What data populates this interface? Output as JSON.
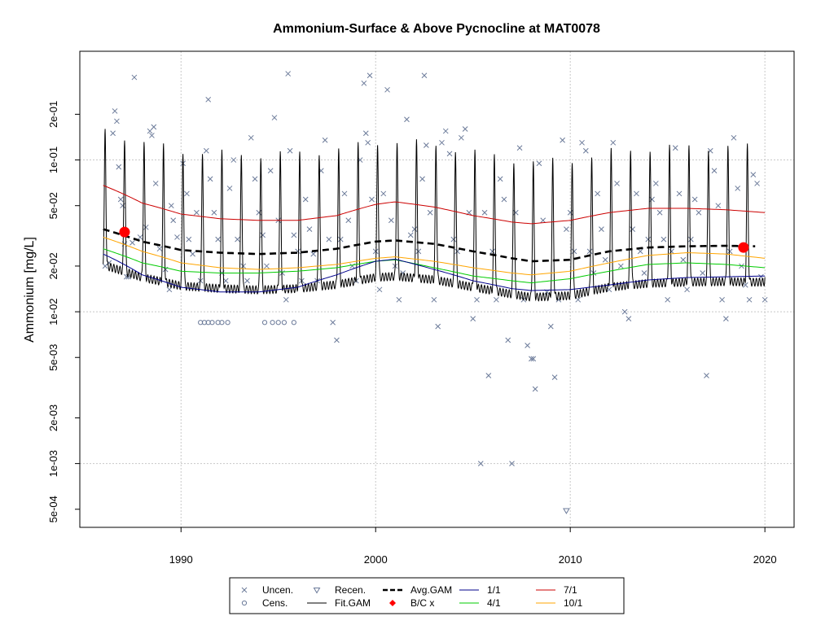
{
  "chart_data": {
    "type": "scatter",
    "title": "Ammonium-Surface & Above Pycnocline at MAT0078",
    "ylabel": "Ammonium [mg/L]",
    "xlabel": "",
    "y_scale": "log",
    "xlim": [
      1984.8,
      2021.5
    ],
    "ylim": [
      0.00038,
      0.52
    ],
    "x_ticks": [
      1990,
      2000,
      2010,
      2020
    ],
    "x_tick_labels": [
      "1990",
      "2000",
      "2010",
      "2020"
    ],
    "y_ticks": [
      0.0005,
      0.001,
      0.002,
      0.005,
      0.01,
      0.02,
      0.05,
      0.1,
      0.2
    ],
    "y_tick_labels": [
      "5e-04",
      "1e-03",
      "2e-03",
      "5e-03",
      "1e-02",
      "2e-02",
      "5e-02",
      "1e-01",
      "2e-01"
    ],
    "grid_x": [
      1990,
      2000,
      2010,
      2020
    ],
    "grid_y": [
      0.001,
      0.01,
      0.1
    ],
    "legend": {
      "position": "bottom",
      "entries": [
        {
          "key": "uncen",
          "label": "Uncen."
        },
        {
          "key": "recen",
          "label": "Recen."
        },
        {
          "key": "avg",
          "label": "Avg.GAM"
        },
        {
          "key": "q11",
          "label": "1/1"
        },
        {
          "key": "q71",
          "label": "7/1"
        },
        {
          "key": "cens",
          "label": "Cens."
        },
        {
          "key": "fit",
          "label": "Fit.GAM"
        },
        {
          "key": "bc",
          "label": "B/C x"
        },
        {
          "key": "q41",
          "label": "4/1"
        },
        {
          "key": "q101",
          "label": "10/1"
        }
      ]
    },
    "colors": {
      "uncen": "#6b7a99",
      "cens": "#6b7a99",
      "recen": "#6b7a99",
      "fit": "#000000",
      "avg": "#000000",
      "bc": "#ff0000",
      "q11": "#00008b",
      "q41": "#00cc00",
      "q71": "#cc0000",
      "q101": "#ffa500"
    },
    "series": [
      {
        "key": "q71",
        "name": "7/1",
        "x": [
          1986,
          1988,
          1990,
          1992,
          1994,
          1996,
          1998,
          2000,
          2001,
          2003,
          2005,
          2007,
          2008,
          2010,
          2012,
          2014,
          2016,
          2018,
          2020
        ],
        "y": [
          0.068,
          0.052,
          0.044,
          0.041,
          0.04,
          0.04,
          0.043,
          0.051,
          0.053,
          0.049,
          0.043,
          0.039,
          0.038,
          0.04,
          0.045,
          0.048,
          0.048,
          0.047,
          0.045
        ]
      },
      {
        "key": "avg",
        "name": "Avg.GAM",
        "x": [
          1986,
          1988,
          1990,
          1992,
          1994,
          1996,
          1998,
          2000,
          2001,
          2003,
          2005,
          2007,
          2008,
          2010,
          2012,
          2014,
          2016,
          2018,
          2019.5
        ],
        "y": [
          0.035,
          0.029,
          0.0255,
          0.0245,
          0.024,
          0.0245,
          0.026,
          0.029,
          0.0295,
          0.028,
          0.025,
          0.0225,
          0.0215,
          0.022,
          0.025,
          0.0265,
          0.027,
          0.0272,
          0.027
        ]
      },
      {
        "key": "q101",
        "name": "10/1",
        "x": [
          1986,
          1988,
          1990,
          1992,
          1994,
          1996,
          1998,
          2000,
          2001,
          2003,
          2005,
          2007,
          2008,
          2010,
          2012,
          2014,
          2016,
          2018,
          2020
        ],
        "y": [
          0.031,
          0.025,
          0.021,
          0.0195,
          0.019,
          0.0195,
          0.0205,
          0.0225,
          0.023,
          0.0215,
          0.0195,
          0.018,
          0.0175,
          0.0185,
          0.021,
          0.0235,
          0.0245,
          0.024,
          0.0225
        ]
      },
      {
        "key": "q41",
        "name": "4/1",
        "x": [
          1986,
          1988,
          1990,
          1992,
          1994,
          1996,
          1998,
          2000,
          2001,
          2003,
          2005,
          2007,
          2008,
          2010,
          2012,
          2014,
          2016,
          2018,
          2020
        ],
        "y": [
          0.026,
          0.021,
          0.0185,
          0.018,
          0.018,
          0.0185,
          0.0195,
          0.0215,
          0.022,
          0.0195,
          0.0172,
          0.016,
          0.0155,
          0.0165,
          0.0185,
          0.0205,
          0.021,
          0.0205,
          0.0195
        ]
      },
      {
        "key": "q11",
        "name": "1/1",
        "x": [
          1986,
          1988,
          1990,
          1992,
          1994,
          1996,
          1998,
          2000,
          2001,
          2003,
          2005,
          2007,
          2008,
          2010,
          2012,
          2014,
          2016,
          2018,
          2020
        ],
        "y": [
          0.024,
          0.0175,
          0.0145,
          0.0135,
          0.0135,
          0.0145,
          0.0175,
          0.0215,
          0.0222,
          0.019,
          0.016,
          0.0142,
          0.0138,
          0.014,
          0.015,
          0.0162,
          0.0168,
          0.017,
          0.0172
        ]
      }
    ],
    "fit_gam": {
      "key": "fit",
      "name": "Fit.GAM",
      "start_year": 1986,
      "end_year": 2020,
      "peak_fraction": 0.1,
      "peak_ratio": 4.5,
      "trough_ratio": 0.58
    },
    "bc_points": [
      {
        "x": 1987.1,
        "y": 0.0335
      },
      {
        "x": 2018.9,
        "y": 0.0265
      }
    ],
    "uncensored": [
      [
        1986.1,
        0.02
      ],
      [
        1986.3,
        0.021
      ],
      [
        1986.5,
        0.15
      ],
      [
        1986.6,
        0.21
      ],
      [
        1986.7,
        0.18
      ],
      [
        1986.8,
        0.09
      ],
      [
        1986.9,
        0.055
      ],
      [
        1987.0,
        0.05
      ],
      [
        1987.1,
        0.028
      ],
      [
        1987.2,
        0.017
      ],
      [
        1987.3,
        0.017
      ],
      [
        1987.5,
        0.0285
      ],
      [
        1987.6,
        0.35
      ],
      [
        1987.9,
        0.031
      ],
      [
        1988.2,
        0.036
      ],
      [
        1988.4,
        0.155
      ],
      [
        1988.5,
        0.145
      ],
      [
        1988.6,
        0.165
      ],
      [
        1988.7,
        0.07
      ],
      [
        1988.9,
        0.026
      ],
      [
        1989.2,
        0.019
      ],
      [
        1989.4,
        0.014
      ],
      [
        1989.5,
        0.05
      ],
      [
        1989.6,
        0.04
      ],
      [
        1989.8,
        0.031
      ],
      [
        1990.1,
        0.095
      ],
      [
        1990.3,
        0.06
      ],
      [
        1990.4,
        0.03
      ],
      [
        1990.6,
        0.024
      ],
      [
        1990.8,
        0.045
      ],
      [
        1991.0,
        0.016
      ],
      [
        1991.3,
        0.115
      ],
      [
        1991.4,
        0.25
      ],
      [
        1991.5,
        0.075
      ],
      [
        1991.7,
        0.045
      ],
      [
        1991.9,
        0.03
      ],
      [
        1992.1,
        0.018
      ],
      [
        1992.3,
        0.016
      ],
      [
        1992.5,
        0.065
      ],
      [
        1992.7,
        0.1
      ],
      [
        1992.9,
        0.03
      ],
      [
        1993.2,
        0.02
      ],
      [
        1993.4,
        0.016
      ],
      [
        1993.6,
        0.14
      ],
      [
        1993.8,
        0.075
      ],
      [
        1994.0,
        0.045
      ],
      [
        1994.2,
        0.032
      ],
      [
        1994.4,
        0.02
      ],
      [
        1994.6,
        0.085
      ],
      [
        1994.8,
        0.19
      ],
      [
        1995.0,
        0.04
      ],
      [
        1995.2,
        0.018
      ],
      [
        1995.4,
        0.012
      ],
      [
        1995.5,
        0.37
      ],
      [
        1995.6,
        0.115
      ],
      [
        1995.8,
        0.032
      ],
      [
        1996.0,
        0.025
      ],
      [
        1996.2,
        0.016
      ],
      [
        1996.4,
        0.055
      ],
      [
        1996.6,
        0.035
      ],
      [
        1996.8,
        0.024
      ],
      [
        1997.0,
        0.016
      ],
      [
        1997.2,
        0.085
      ],
      [
        1997.4,
        0.135
      ],
      [
        1997.6,
        0.03
      ],
      [
        1997.8,
        0.0085
      ],
      [
        1998.0,
        0.0065
      ],
      [
        1998.2,
        0.03
      ],
      [
        1998.4,
        0.06
      ],
      [
        1998.6,
        0.04
      ],
      [
        1998.8,
        0.02
      ],
      [
        1999.0,
        0.016
      ],
      [
        1999.2,
        0.1
      ],
      [
        1999.4,
        0.32
      ],
      [
        1999.5,
        0.15
      ],
      [
        1999.6,
        0.13
      ],
      [
        1999.7,
        0.36
      ],
      [
        1999.8,
        0.055
      ],
      [
        2000.0,
        0.025
      ],
      [
        2000.2,
        0.014
      ],
      [
        2000.4,
        0.06
      ],
      [
        2000.6,
        0.29
      ],
      [
        2000.8,
        0.04
      ],
      [
        2001.0,
        0.02
      ],
      [
        2001.2,
        0.012
      ],
      [
        2001.4,
        0.018
      ],
      [
        2001.6,
        0.185
      ],
      [
        2001.8,
        0.032
      ],
      [
        2002.0,
        0.035
      ],
      [
        2002.2,
        0.025
      ],
      [
        2002.4,
        0.075
      ],
      [
        2002.5,
        0.36
      ],
      [
        2002.6,
        0.125
      ],
      [
        2002.8,
        0.045
      ],
      [
        2003.0,
        0.012
      ],
      [
        2003.2,
        0.008
      ],
      [
        2003.4,
        0.13
      ],
      [
        2003.6,
        0.155
      ],
      [
        2003.8,
        0.11
      ],
      [
        2004.0,
        0.03
      ],
      [
        2004.2,
        0.025
      ],
      [
        2004.4,
        0.14
      ],
      [
        2004.6,
        0.16
      ],
      [
        2004.8,
        0.045
      ],
      [
        2005.0,
        0.009
      ],
      [
        2005.2,
        0.012
      ],
      [
        2005.4,
        0.001
      ],
      [
        2005.6,
        0.045
      ],
      [
        2005.8,
        0.0038
      ],
      [
        2006.0,
        0.025
      ],
      [
        2006.2,
        0.012
      ],
      [
        2006.4,
        0.075
      ],
      [
        2006.6,
        0.055
      ],
      [
        2006.8,
        0.0065
      ],
      [
        2007.0,
        0.001
      ],
      [
        2007.2,
        0.045
      ],
      [
        2007.4,
        0.12
      ],
      [
        2007.6,
        0.012
      ],
      [
        2007.8,
        0.006
      ],
      [
        2008.0,
        0.0049
      ],
      [
        2008.1,
        0.0049
      ],
      [
        2008.2,
        0.0031
      ],
      [
        2008.4,
        0.095
      ],
      [
        2008.6,
        0.04
      ],
      [
        2008.8,
        0.0135
      ],
      [
        2009.0,
        0.008
      ],
      [
        2009.2,
        0.0037
      ],
      [
        2009.4,
        0.012
      ],
      [
        2009.6,
        0.135
      ],
      [
        2009.8,
        0.035
      ],
      [
        2010.0,
        0.045
      ],
      [
        2010.2,
        0.025
      ],
      [
        2010.4,
        0.012
      ],
      [
        2010.6,
        0.13
      ],
      [
        2010.8,
        0.115
      ],
      [
        2011.0,
        0.025
      ],
      [
        2011.2,
        0.018
      ],
      [
        2011.4,
        0.06
      ],
      [
        2011.6,
        0.035
      ],
      [
        2011.8,
        0.022
      ],
      [
        2012.0,
        0.014
      ],
      [
        2012.2,
        0.13
      ],
      [
        2012.4,
        0.07
      ],
      [
        2012.6,
        0.02
      ],
      [
        2012.8,
        0.01
      ],
      [
        2013.0,
        0.009
      ],
      [
        2013.2,
        0.035
      ],
      [
        2013.4,
        0.06
      ],
      [
        2013.6,
        0.025
      ],
      [
        2013.8,
        0.018
      ],
      [
        2014.0,
        0.03
      ],
      [
        2014.2,
        0.055
      ],
      [
        2014.4,
        0.07
      ],
      [
        2014.6,
        0.045
      ],
      [
        2014.8,
        0.03
      ],
      [
        2015.0,
        0.012
      ],
      [
        2015.2,
        0.025
      ],
      [
        2015.4,
        0.12
      ],
      [
        2015.6,
        0.06
      ],
      [
        2015.8,
        0.022
      ],
      [
        2016.0,
        0.014
      ],
      [
        2016.2,
        0.03
      ],
      [
        2016.4,
        0.055
      ],
      [
        2016.6,
        0.045
      ],
      [
        2016.8,
        0.018
      ],
      [
        2017.0,
        0.0038
      ],
      [
        2017.2,
        0.115
      ],
      [
        2017.4,
        0.085
      ],
      [
        2017.6,
        0.05
      ],
      [
        2017.8,
        0.012
      ],
      [
        2018.0,
        0.009
      ],
      [
        2018.2,
        0.025
      ],
      [
        2018.4,
        0.14
      ],
      [
        2018.6,
        0.065
      ],
      [
        2018.8,
        0.02
      ],
      [
        2019.0,
        0.015
      ],
      [
        2019.2,
        0.012
      ],
      [
        2019.4,
        0.08
      ],
      [
        2019.6,
        0.07
      ],
      [
        2019.8,
        0.017
      ],
      [
        2020.0,
        0.012
      ]
    ],
    "censored": [
      [
        1991.0,
        0.0085
      ],
      [
        1991.2,
        0.0085
      ],
      [
        1991.4,
        0.0085
      ],
      [
        1991.6,
        0.0085
      ],
      [
        1991.9,
        0.0085
      ],
      [
        1992.1,
        0.0085
      ],
      [
        1992.4,
        0.0085
      ],
      [
        1994.3,
        0.0085
      ],
      [
        1994.7,
        0.0085
      ],
      [
        1995.0,
        0.0085
      ],
      [
        1995.3,
        0.0085
      ],
      [
        1995.8,
        0.0085
      ]
    ],
    "recensored": [
      [
        2009.8,
        0.00049
      ]
    ]
  }
}
